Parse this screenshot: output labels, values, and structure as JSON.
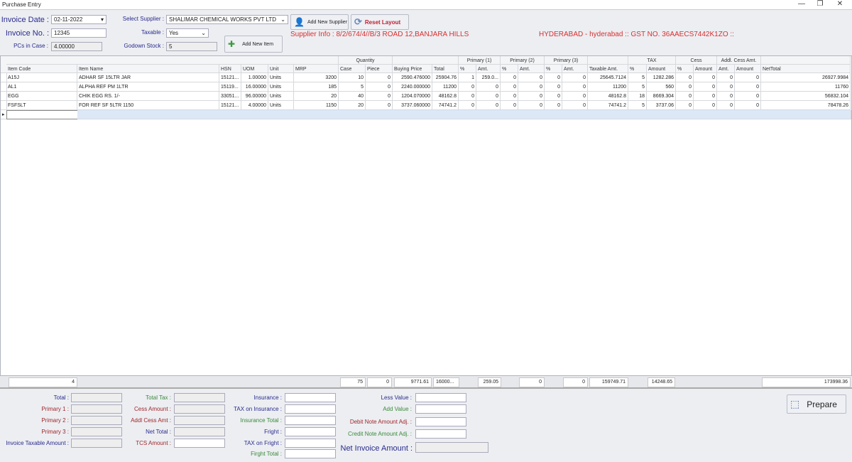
{
  "window": {
    "title": "Purchase Entry",
    "minimize": "—",
    "restore": "❐",
    "close": "✕"
  },
  "header": {
    "invoice_date_label": "Invoice Date :",
    "invoice_date": "02-11-2022",
    "invoice_no_label": "Invoice No. :",
    "invoice_no": "12345",
    "pcs_label": "PCs in Case :",
    "pcs": "4.00000",
    "supplier_label": "Select Supplier :",
    "supplier": "SHALIMAR CHEMICAL  WORKS PVT LTD",
    "taxable_label": "Taxable :",
    "taxable": "Yes",
    "godown_label": "Godown Stock :",
    "godown": "5",
    "add_supplier": "Add New Supplier",
    "reset_layout": "Reset Layout",
    "add_item": "Add New Item",
    "supplier_info": "Supplier Info : 8/2/674/4//B/3 ROAD 12,BANJARA  HILLS",
    "supplier_gst": "HYDERABAD - hyderabad :: GST NO. 36AAECS7442K1ZO ::"
  },
  "grid": {
    "groups": [
      {
        "label": "Quantity",
        "from": 7,
        "to": 8
      },
      {
        "label": "Primary (1)",
        "from": 11,
        "to": 12
      },
      {
        "label": "Primary (2)",
        "from": 13,
        "to": 14
      },
      {
        "label": "Primary (3)",
        "from": 15,
        "to": 16
      },
      {
        "label": "TAX",
        "from": 18,
        "to": 19
      },
      {
        "label": "Cess",
        "from": 20,
        "to": 21
      },
      {
        "label": "Addl. Cess Amt.",
        "from": 22,
        "to": 23
      }
    ],
    "columns": [
      "Item Code",
      "Item Name",
      "HSN",
      "UOM",
      "Unit",
      "MRP",
      "Case",
      "Piece",
      "Buying Price",
      "Total",
      "%",
      "Amt.",
      "%",
      "Amt.",
      "%",
      "Amt.",
      "Taxable Amt.",
      "%",
      "Amount",
      "%",
      "Amount",
      "Amt.",
      "Amount",
      "NetTotal"
    ],
    "rows": [
      [
        "A15J",
        "ADHAR SF 15LTR JAR",
        "15121...",
        "1.00000",
        "Units",
        "3200",
        "10",
        "0",
        "2590.476000",
        "25904.76",
        "1",
        "259.0...",
        "0",
        "0",
        "0",
        "0",
        "25645.7124",
        "5",
        "1282.286",
        "0",
        "0",
        "0",
        "0",
        "26927.9984"
      ],
      [
        "AL1",
        "ALPHA REF PM 1LTR",
        "15119...",
        "16.00000",
        "Units",
        "185",
        "5",
        "0",
        "2240.000000",
        "11200",
        "0",
        "0",
        "0",
        "0",
        "0",
        "0",
        "11200",
        "5",
        "560",
        "0",
        "0",
        "0",
        "0",
        "11760"
      ],
      [
        "EGG",
        "CHIK EGG RS. 1/-",
        "33051...",
        "96.00000",
        "Units",
        "20",
        "40",
        "0",
        "1204.070000",
        "48162.8",
        "0",
        "0",
        "0",
        "0",
        "0",
        "0",
        "48162.8",
        "18",
        "8669.304",
        "0",
        "0",
        "0",
        "0",
        "56832.104"
      ],
      [
        "FSFSLT",
        "FOR REF SF 5LTR 1150",
        "15121...",
        "4.00000",
        "Units",
        "1150",
        "20",
        "0",
        "3737.060000",
        "74741.2",
        "0",
        "0",
        "0",
        "0",
        "0",
        "0",
        "74741.2",
        "5",
        "3737.06",
        "0",
        "0",
        "0",
        "0",
        "78478.26"
      ]
    ],
    "totals": {
      "count": "4",
      "case": "75",
      "piece": "0",
      "buying": "9771.61",
      "total": "16000...",
      "p1amt": "259.05",
      "p2amt": "0",
      "p3amt": "0",
      "taxable": "159749.71",
      "tax": "14248.65",
      "net": "173998.36"
    }
  },
  "summary": {
    "total": "Total :",
    "primary1": "Primary 1 :",
    "primary2": "Primary 2 :",
    "primary3": "Primary 3 :",
    "invoice_taxable": "Invoice Taxable Amount :",
    "total_tax": "Total Tax :",
    "cess_amount": "Cess Amount :",
    "addl_cess": "Addl Cess Amt :",
    "net_total": "Net Total :",
    "tcs": "TCS Amount :",
    "insurance": "Insurance :",
    "tax_insurance": "TAX on Insurance :",
    "insurance_total": "Insurance Total :",
    "fright": "Fright :",
    "tax_fright": "TAX on Fright :",
    "fright_total": "Firght Total :",
    "less_value": "Less Value :",
    "add_value": "Add Value :",
    "debit_note": "Debit Note Amount Adj. :",
    "credit_note": "Credit Note Amount Adj. :",
    "net_invoice": "Net Invoice Amount :",
    "prepare": "Prepare"
  }
}
